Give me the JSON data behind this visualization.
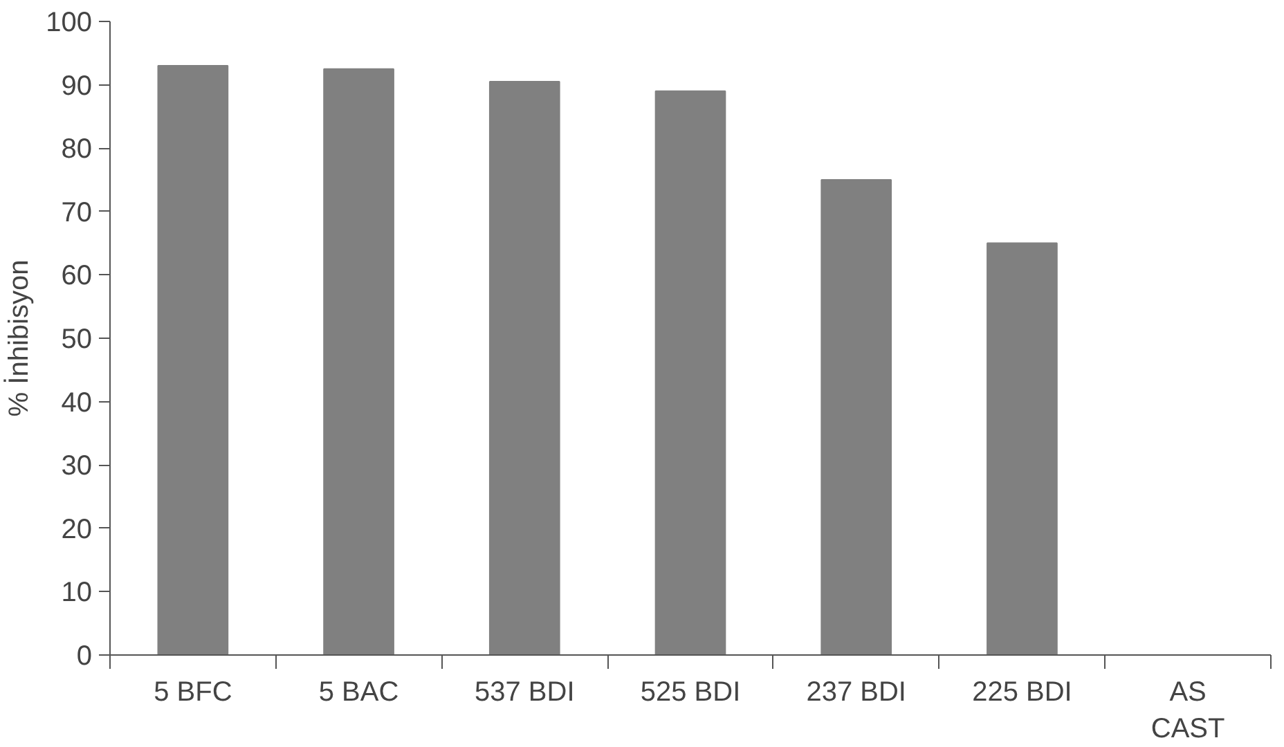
{
  "chart_data": {
    "type": "bar",
    "ylabel": "% İnhibisyon",
    "categories": [
      "5 BFC",
      "5 BAC",
      "537 BDI",
      "525 BDI",
      "237 BDI",
      "225 BDI",
      "AS\nCAST"
    ],
    "values": [
      93,
      92.5,
      90.5,
      89,
      75,
      65,
      0
    ],
    "color": "#808080",
    "ylim": [
      0,
      100
    ],
    "yticks": [
      0,
      10,
      20,
      30,
      40,
      50,
      60,
      70,
      80,
      90,
      100
    ],
    "grid": false
  }
}
